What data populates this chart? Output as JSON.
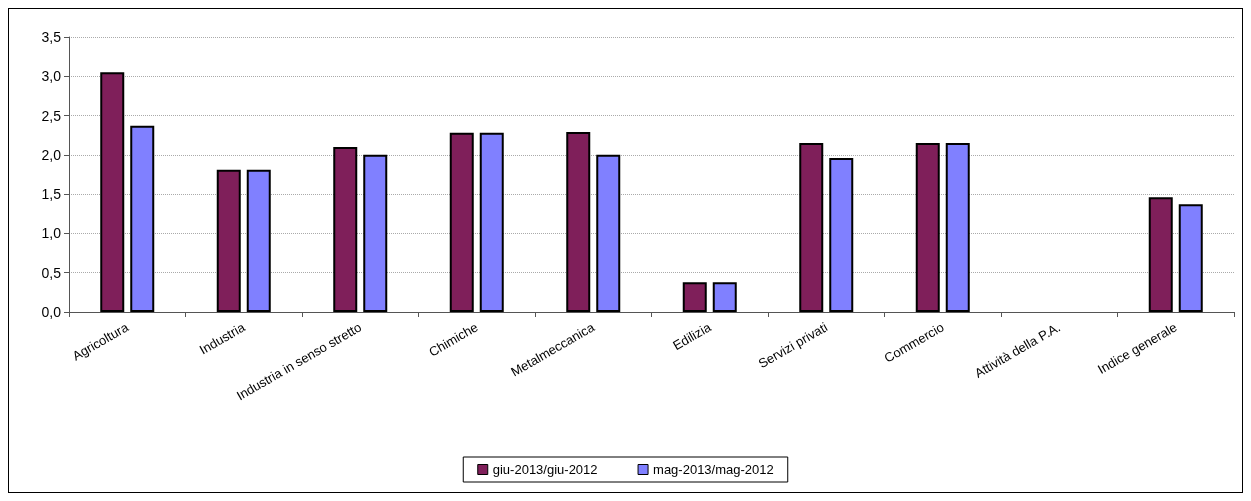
{
  "chart_data": {
    "type": "bar",
    "categories": [
      "Agricoltura",
      "Industria",
      "Industria in senso stretto",
      "Chimiche",
      "Metalmeccanica",
      "Edilizia",
      "Servizi privati",
      "Commercio",
      "Attività della P.A.",
      "Indice generale"
    ],
    "series": [
      {
        "name": "giu-2013/giu-2012",
        "color": "#7f1f5a",
        "values": [
          3.05,
          1.81,
          2.1,
          2.28,
          2.29,
          0.38,
          2.15,
          2.15,
          null,
          1.46
        ]
      },
      {
        "name": "mag-2013/mag-2012",
        "color": "#8080ff",
        "values": [
          2.37,
          1.81,
          2.0,
          2.28,
          2.0,
          0.38,
          1.96,
          2.15,
          null,
          1.37
        ]
      }
    ],
    "ylim": [
      0,
      3.5
    ],
    "yticks": [
      {
        "value": 0,
        "label": "0,0"
      },
      {
        "value": 0.5,
        "label": "0,5"
      },
      {
        "value": 1,
        "label": "1,0"
      },
      {
        "value": 1.5,
        "label": "1,5"
      },
      {
        "value": 2,
        "label": "2,0"
      },
      {
        "value": 2.5,
        "label": "2,5"
      },
      {
        "value": 3,
        "label": "3,0"
      },
      {
        "value": 3.5,
        "label": "3,5"
      }
    ],
    "grid": "y",
    "legend": "bottom"
  }
}
